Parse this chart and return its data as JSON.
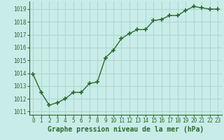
{
  "x": [
    0,
    1,
    2,
    3,
    4,
    5,
    6,
    7,
    8,
    9,
    10,
    11,
    12,
    13,
    14,
    15,
    16,
    17,
    18,
    19,
    20,
    21,
    22,
    23
  ],
  "y": [
    1013.9,
    1012.5,
    1011.5,
    1011.7,
    1012.0,
    1012.5,
    1012.5,
    1013.2,
    1013.3,
    1015.2,
    1015.8,
    1016.7,
    1017.1,
    1017.4,
    1017.4,
    1018.1,
    1018.2,
    1018.5,
    1018.5,
    1018.9,
    1019.2,
    1019.1,
    1019.0,
    1019.0
  ],
  "line_color": "#2d6a2d",
  "marker": "+",
  "marker_size": 4,
  "marker_linewidth": 1.2,
  "bg_color": "#c8ece8",
  "grid_color": "#add8d0",
  "xlabel": "Graphe pression niveau de la mer (hPa)",
  "xlim": [
    -0.5,
    23.5
  ],
  "ylim": [
    1010.75,
    1019.6
  ],
  "yticks": [
    1011,
    1012,
    1013,
    1014,
    1015,
    1016,
    1017,
    1018,
    1019
  ],
  "xticks": [
    0,
    1,
    2,
    3,
    4,
    5,
    6,
    7,
    8,
    9,
    10,
    11,
    12,
    13,
    14,
    15,
    16,
    17,
    18,
    19,
    20,
    21,
    22,
    23
  ],
  "tick_fontsize": 5.5,
  "label_fontsize": 7,
  "label_fontweight": "bold",
  "label_color": "#2d6a2d",
  "linewidth": 1.0
}
